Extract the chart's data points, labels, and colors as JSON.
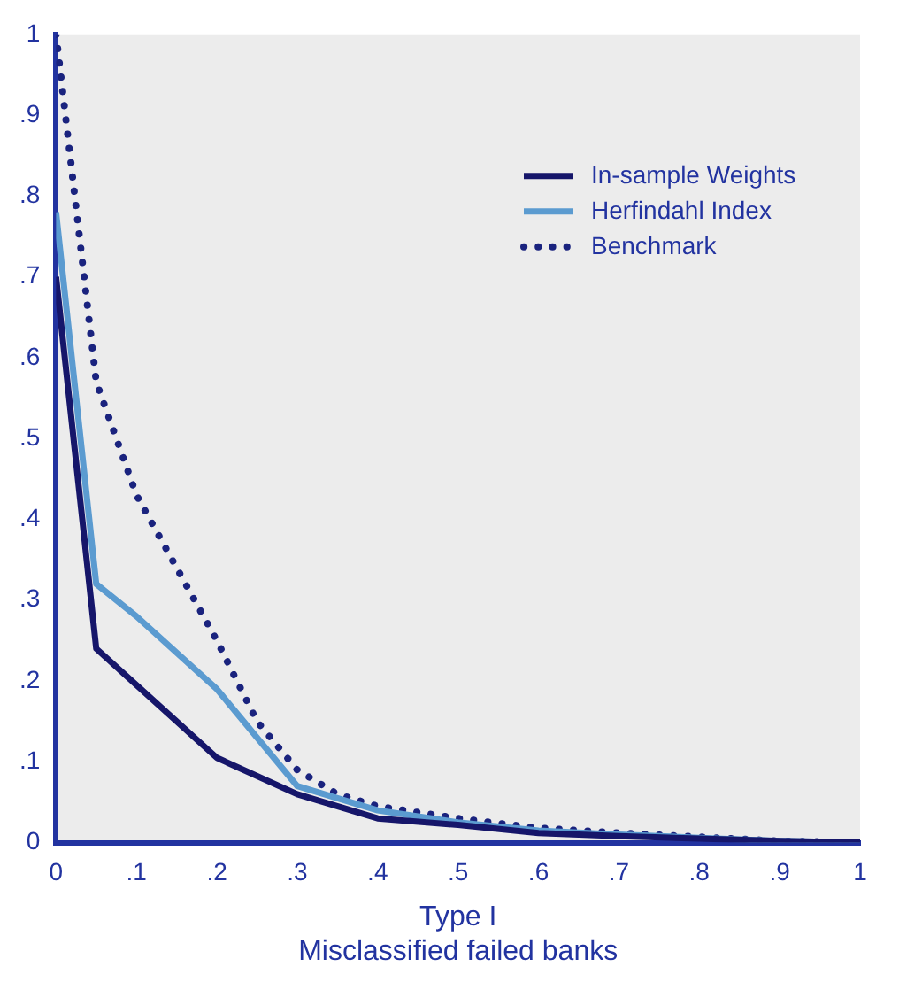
{
  "chart_data": {
    "type": "line",
    "xlabel": "Type I\nMisclassified failed banks",
    "xlim": [
      0,
      1
    ],
    "xticks": [
      0,
      {
        "value": 0.1,
        "label": ".1"
      },
      {
        "value": 0.2,
        "label": ".2"
      },
      {
        "value": 0.3,
        "label": ".3"
      },
      {
        "value": 0.4,
        "label": ".4"
      },
      {
        "value": 0.5,
        "label": ".5"
      },
      {
        "value": 0.6,
        "label": ".6"
      },
      {
        "value": 0.7,
        "label": ".7"
      },
      {
        "value": 0.8,
        "label": ".8"
      },
      {
        "value": 0.9,
        "label": ".9"
      },
      1
    ],
    "ylim": [
      0,
      1
    ],
    "yticks": [
      0,
      {
        "value": 0.1,
        "label": ".1"
      },
      {
        "value": 0.2,
        "label": ".2"
      },
      {
        "value": 0.3,
        "label": ".3"
      },
      {
        "value": 0.4,
        "label": ".4"
      },
      {
        "value": 0.5,
        "label": ".5"
      },
      {
        "value": 0.6,
        "label": ".6"
      },
      {
        "value": 0.7,
        "label": ".7"
      },
      {
        "value": 0.8,
        "label": ".8"
      },
      {
        "value": 0.9,
        "label": ".9"
      },
      1
    ],
    "grid": false,
    "legend": "top right",
    "marker": "none",
    "series": [
      {
        "name": "In-sample Weights",
        "color": "#16166a",
        "line_style": "solid",
        "x": [
          0,
          0.05,
          0.2,
          0.3,
          0.4,
          0.5,
          0.6,
          0.7,
          0.8,
          0.9,
          1
        ],
        "values": [
          0.7,
          0.24,
          0.105,
          0.06,
          0.03,
          0.022,
          0.012,
          0.008,
          0.005,
          0.002,
          0
        ]
      },
      {
        "name": "Herfindahl Index",
        "color": "#5b9bd0",
        "line_style": "solid",
        "x": [
          0,
          0.05,
          0.1,
          0.2,
          0.3,
          0.4,
          0.5,
          0.6,
          0.7,
          0.8,
          0.9,
          1
        ],
        "values": [
          0.78,
          0.32,
          0.28,
          0.19,
          0.07,
          0.04,
          0.025,
          0.015,
          0.01,
          0.006,
          0.002,
          0
        ]
      },
      {
        "name": "Benchmark",
        "color": "#1a237e",
        "line_style": "dotted",
        "x": [
          0,
          0.05,
          0.1,
          0.15,
          0.2,
          0.25,
          0.3,
          0.35,
          0.4,
          0.5,
          0.6,
          0.7,
          0.8,
          0.9,
          1
        ],
        "values": [
          1,
          0.57,
          0.43,
          0.34,
          0.25,
          0.15,
          0.09,
          0.06,
          0.045,
          0.03,
          0.018,
          0.012,
          0.007,
          0.002,
          0
        ]
      }
    ]
  }
}
